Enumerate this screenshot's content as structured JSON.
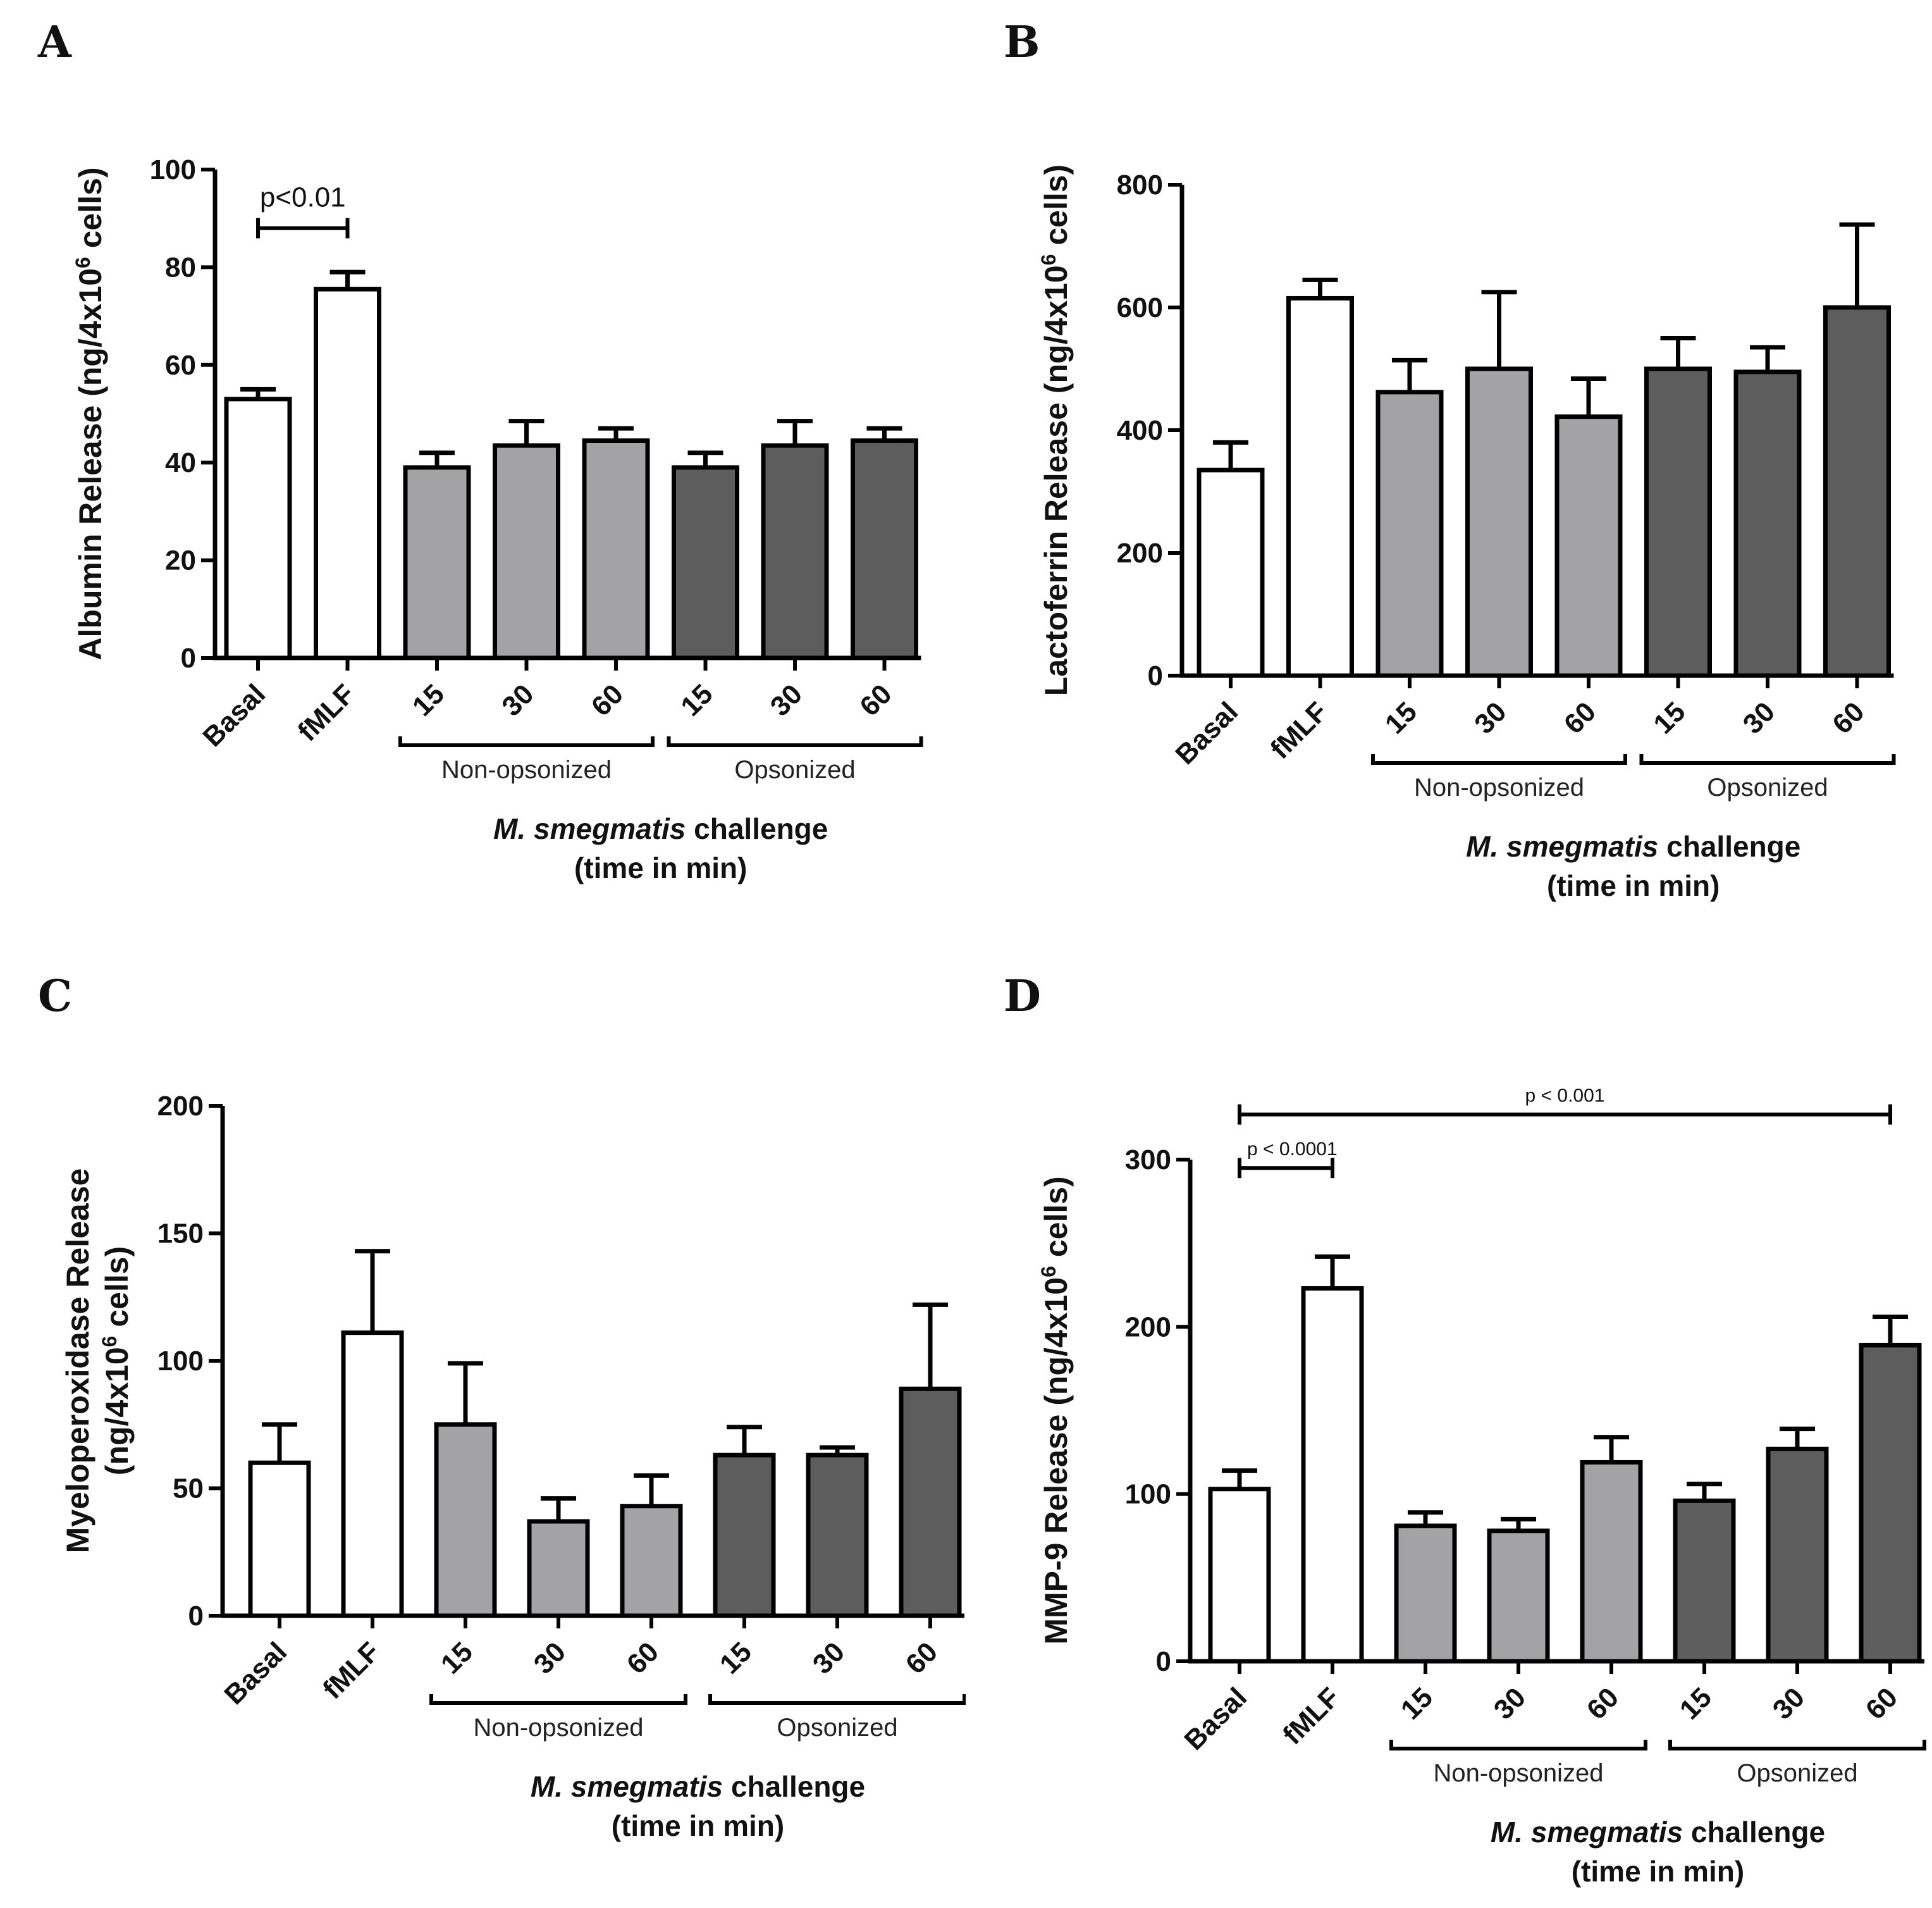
{
  "colors": {
    "control": "#ffffff",
    "non_opsonized": "#a3a3a6",
    "opsonized": "#5d5d5e",
    "stroke": "#000000"
  },
  "shared": {
    "categories": [
      "Basal",
      "fMLF",
      "15",
      "30",
      "60",
      "15",
      "30",
      "60"
    ],
    "group_labels": [
      "Non-opsonized",
      "Opsonized"
    ],
    "xtitle_italic": "M. smegmatis",
    "xtitle_rest": " challenge",
    "xtitle_line2": "(time in min)"
  },
  "chart_data": [
    {
      "panel": "A",
      "type": "bar",
      "ylabel": "Albumin Release (ng/4x10",
      "ylabel_sup": "6",
      "ylabel_end": " cells)",
      "ylim": [
        0,
        100
      ],
      "yticks": [
        "0",
        "20",
        "40",
        "60",
        "80",
        "100"
      ],
      "yticks_values": [
        0,
        20,
        40,
        60,
        80,
        100
      ],
      "values": [
        53,
        75.5,
        39,
        43.5,
        44.5,
        39,
        43.5,
        44.5
      ],
      "errors": [
        2,
        3.5,
        3,
        5,
        2.5,
        3,
        5,
        2.5
      ],
      "annotations": [
        {
          "text": "p<0.01",
          "from": 0,
          "to": 1,
          "y": 88
        }
      ]
    },
    {
      "panel": "B",
      "type": "bar",
      "ylabel": "Lactoferrin Release (ng/4x10",
      "ylabel_sup": "6",
      "ylabel_end": " cells)",
      "ylim": [
        0,
        800
      ],
      "yticks": [
        "0",
        "200",
        "400",
        "600",
        "800"
      ],
      "yticks_values": [
        0,
        200,
        400,
        600,
        800
      ],
      "values": [
        335,
        615,
        462,
        500,
        422,
        500,
        495,
        600
      ],
      "errors": [
        45,
        30,
        52,
        125,
        62,
        50,
        40,
        135
      ],
      "annotations": []
    },
    {
      "panel": "C",
      "type": "bar",
      "ylabel": "Myeloperoxidase Release",
      "ylabel2": "(ng/4x10",
      "ylabel_sup": "6",
      "ylabel_end": " cells)",
      "ylim": [
        0,
        200
      ],
      "yticks": [
        "0",
        "50",
        "100",
        "150",
        "200"
      ],
      "yticks_values": [
        0,
        50,
        100,
        150,
        200
      ],
      "values": [
        60,
        111,
        75,
        37,
        43,
        63,
        63,
        89
      ],
      "errors": [
        15,
        32,
        24,
        9,
        12,
        11,
        3,
        33
      ],
      "annotations": []
    },
    {
      "panel": "D",
      "type": "bar",
      "ylabel": "MMP-9 Release (ng/4x10",
      "ylabel_sup": "6",
      "ylabel_end": " cells)",
      "ylim": [
        0,
        300
      ],
      "yticks": [
        "0",
        "100",
        "200",
        "300"
      ],
      "yticks_values": [
        0,
        100,
        200,
        300
      ],
      "values": [
        103,
        223,
        81,
        78,
        119,
        96,
        127,
        189
      ],
      "errors": [
        11,
        19,
        8,
        7,
        15,
        10,
        12,
        17
      ],
      "annotations": [
        {
          "text": "p < 0.0001",
          "from": 0,
          "to": 1,
          "y": 295,
          "small": true
        },
        {
          "text": "p < 0.001",
          "from": 0,
          "to": 7,
          "y": 327,
          "small": true
        }
      ]
    }
  ]
}
